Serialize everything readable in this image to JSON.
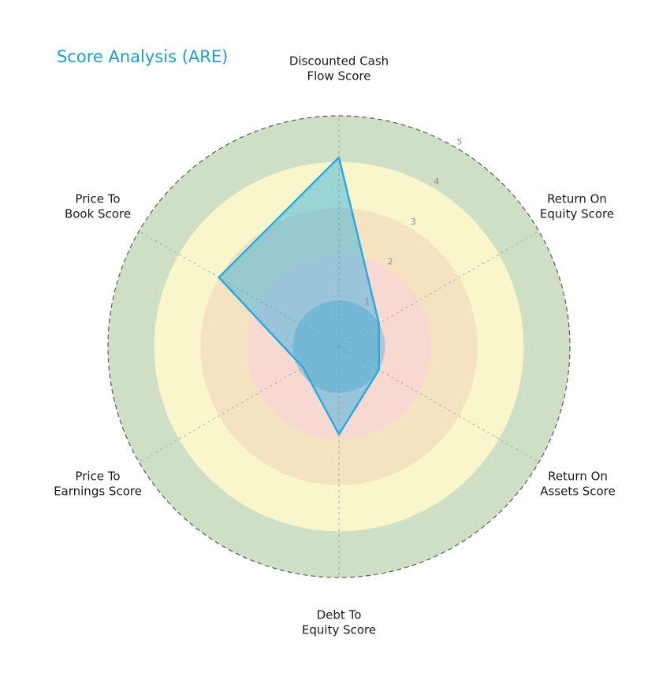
{
  "chart_data": {
    "type": "radar",
    "title": "Score Analysis (ARE)",
    "title_color": "#1b9ec9",
    "categories": [
      "Discounted Cash\nFlow Score",
      "Return On\nEquity Score",
      "Return On\nAssets Score",
      "Debt To\nEquity Score",
      "Price To\nEarnings Score",
      "Price To\nBook Score"
    ],
    "series": [
      {
        "name": "ARE",
        "values": [
          4.1,
          1.0,
          1.0,
          1.9,
          0.9,
          3.0
        ]
      }
    ],
    "rlim": [
      0,
      5
    ],
    "ticks": [
      "1",
      "2",
      "3",
      "4",
      "5"
    ],
    "bands": [
      {
        "range": [
          4,
          5
        ],
        "color": "#cfdfc6"
      },
      {
        "range": [
          3,
          4
        ],
        "color": "#f9f6cb"
      },
      {
        "range": [
          2,
          3
        ],
        "color": "#f5e2c0"
      },
      {
        "range": [
          1,
          2
        ],
        "color": "#f8d9d2"
      },
      {
        "range": [
          0,
          1
        ],
        "color": "#b4c3cd"
      }
    ],
    "series_color": "#29abe2",
    "series_fill": "rgba(41,171,226,0.45)",
    "grid": "dashed-spokes",
    "legend": "none",
    "tick_color": "#8c8c8c",
    "spoke_color": "#9a9a9a",
    "outer_ring_color": "#4a4a4a"
  }
}
